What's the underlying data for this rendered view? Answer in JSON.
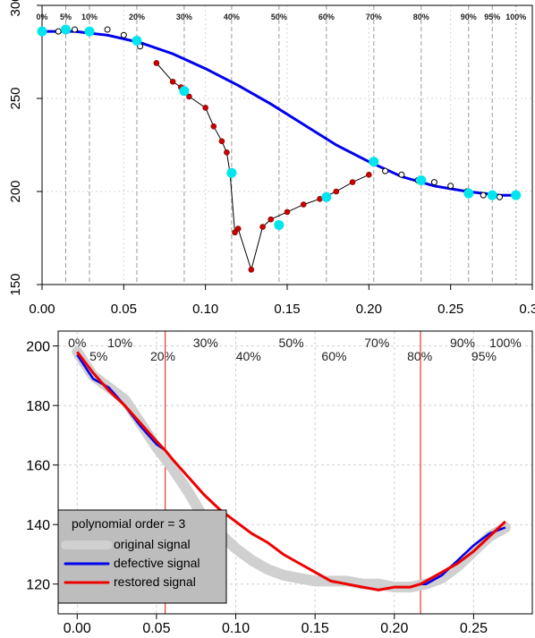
{
  "chart_data": [
    {
      "type": "scatter",
      "title": "",
      "xlabel": "",
      "ylabel": "",
      "xlim": [
        0,
        0.3
      ],
      "ylim": [
        150,
        300
      ],
      "xticks": [
        0.0,
        0.05,
        0.1,
        0.15,
        0.2,
        0.25,
        0.3
      ],
      "yticks": [
        150,
        200,
        250,
        300
      ],
      "xtick_labels": [
        "0.00",
        "0.05",
        "0.10",
        "0.15",
        "0.20",
        "0.25",
        "0.30"
      ],
      "ytick_labels": [
        "150",
        "200",
        "250",
        "300"
      ],
      "grid": "dotted",
      "percent_lines": [
        {
          "label": "0%",
          "x": 0.0,
          "style": "dotted"
        },
        {
          "label": "5%",
          "x": 0.0145,
          "style": "dashed"
        },
        {
          "label": "10%",
          "x": 0.029,
          "style": "dashed"
        },
        {
          "label": "20%",
          "x": 0.058,
          "style": "dashed"
        },
        {
          "label": "30%",
          "x": 0.087,
          "style": "dashed"
        },
        {
          "label": "40%",
          "x": 0.116,
          "style": "dashed"
        },
        {
          "label": "50%",
          "x": 0.145,
          "style": "dashed"
        },
        {
          "label": "60%",
          "x": 0.174,
          "style": "dashed"
        },
        {
          "label": "70%",
          "x": 0.203,
          "style": "dashed"
        },
        {
          "label": "80%",
          "x": 0.232,
          "style": "dashed"
        },
        {
          "label": "90%",
          "x": 0.261,
          "style": "dashed"
        },
        {
          "label": "95%",
          "x": 0.2755,
          "style": "dashed"
        },
        {
          "label": "100%",
          "x": 0.29,
          "style": "dotted"
        }
      ],
      "series": [
        {
          "role": "fitted-curve",
          "color": "#0000ee",
          "x": [
            0.0,
            0.02,
            0.04,
            0.06,
            0.08,
            0.1,
            0.12,
            0.14,
            0.16,
            0.18,
            0.2,
            0.22,
            0.24,
            0.26,
            0.28,
            0.29
          ],
          "y": [
            286,
            286,
            284,
            280,
            274,
            266,
            257,
            247,
            236,
            225,
            216,
            208,
            203,
            200,
            198,
            198
          ]
        },
        {
          "role": "original-points",
          "color": "#000000",
          "x": [
            0.0,
            0.01,
            0.02,
            0.03,
            0.04,
            0.05,
            0.06,
            0.21,
            0.22,
            0.23,
            0.24,
            0.25,
            0.26,
            0.27,
            0.28,
            0.29
          ],
          "y": [
            286,
            286,
            287,
            286,
            287,
            284,
            278,
            211,
            209,
            206,
            205,
            203,
            200,
            198,
            197,
            198
          ]
        },
        {
          "role": "defective-points",
          "color": "#cc0000",
          "x": [
            0.07,
            0.08,
            0.085,
            0.09,
            0.1,
            0.105,
            0.11,
            0.113,
            0.115,
            0.118,
            0.12,
            0.128,
            0.135,
            0.14,
            0.15,
            0.16,
            0.17,
            0.18,
            0.19,
            0.2
          ],
          "y": [
            269,
            259,
            256,
            251,
            245,
            235,
            227,
            221,
            210,
            178,
            180,
            158,
            181,
            185,
            189,
            193,
            196,
            200,
            205,
            209
          ]
        },
        {
          "role": "sampled-points",
          "color": "#00e5ee",
          "x": [
            0.0,
            0.0145,
            0.029,
            0.058,
            0.087,
            0.116,
            0.145,
            0.174,
            0.203,
            0.232,
            0.261,
            0.2755,
            0.29
          ],
          "y": [
            286,
            287,
            286,
            281,
            254,
            210,
            182,
            197,
            216,
            206,
            199,
            198,
            198
          ]
        }
      ]
    },
    {
      "type": "line",
      "title": "",
      "xlabel": "",
      "ylabel": "",
      "xlim": [
        -0.012,
        0.287
      ],
      "ylim": [
        110,
        205
      ],
      "xticks": [
        0.0,
        0.05,
        0.1,
        0.15,
        0.2,
        0.25
      ],
      "yticks": [
        120,
        140,
        160,
        180,
        200
      ],
      "xtick_labels": [
        "0.00",
        "0.05",
        "0.10",
        "0.15",
        "0.20",
        "0.25"
      ],
      "ytick_labels": [
        "120",
        "140",
        "160",
        "180",
        "200"
      ],
      "grid": "dotted",
      "percent_labels": [
        {
          "label": "0%",
          "x": 0.0,
          "row": "top"
        },
        {
          "label": "5%",
          "x": 0.0135,
          "row": "bottom"
        },
        {
          "label": "10%",
          "x": 0.027,
          "row": "top"
        },
        {
          "label": "20%",
          "x": 0.054,
          "row": "bottom"
        },
        {
          "label": "30%",
          "x": 0.081,
          "row": "top"
        },
        {
          "label": "40%",
          "x": 0.108,
          "row": "bottom"
        },
        {
          "label": "50%",
          "x": 0.135,
          "row": "top"
        },
        {
          "label": "60%",
          "x": 0.162,
          "row": "bottom"
        },
        {
          "label": "70%",
          "x": 0.189,
          "row": "top"
        },
        {
          "label": "80%",
          "x": 0.216,
          "row": "bottom"
        },
        {
          "label": "90%",
          "x": 0.243,
          "row": "top"
        },
        {
          "label": "95%",
          "x": 0.2565,
          "row": "bottom"
        },
        {
          "label": "100%",
          "x": 0.27,
          "row": "top"
        }
      ],
      "red_vlines": [
        0.0555,
        0.2165
      ],
      "series": [
        {
          "name": "original signal",
          "color": "#d0d0d0",
          "x": [
            0.0,
            0.01,
            0.02,
            0.03,
            0.04,
            0.05,
            0.06,
            0.07,
            0.08,
            0.09,
            0.1,
            0.11,
            0.12,
            0.13,
            0.14,
            0.15,
            0.16,
            0.17,
            0.18,
            0.19,
            0.2,
            0.21,
            0.22,
            0.23,
            0.24,
            0.25,
            0.26,
            0.27
          ],
          "y": [
            198,
            190,
            186,
            182,
            174,
            166,
            159,
            151,
            142,
            137,
            132,
            128,
            125,
            123,
            122,
            121,
            121,
            121,
            120,
            120,
            119,
            119,
            120,
            122,
            126,
            131,
            136,
            139
          ]
        },
        {
          "name": "defective signal",
          "color": "#0000ee",
          "x": [
            0.0,
            0.01,
            0.02,
            0.03,
            0.04,
            0.05,
            0.0555,
            0.2165,
            0.22,
            0.23,
            0.24,
            0.25,
            0.26,
            0.27
          ],
          "y": [
            197,
            189,
            186,
            180,
            173,
            167,
            165,
            120,
            120,
            123,
            128,
            133,
            137,
            139
          ]
        },
        {
          "name": "restored signal",
          "color": "#ee0000",
          "x": [
            0.0,
            0.01,
            0.02,
            0.03,
            0.04,
            0.05,
            0.0555,
            0.06,
            0.07,
            0.08,
            0.09,
            0.1,
            0.11,
            0.12,
            0.13,
            0.14,
            0.15,
            0.16,
            0.17,
            0.18,
            0.19,
            0.2,
            0.21,
            0.2165,
            0.22,
            0.23,
            0.24,
            0.25,
            0.26,
            0.27
          ],
          "y": [
            198,
            191,
            185,
            180,
            174,
            168,
            165,
            162,
            156,
            150,
            145,
            141,
            137,
            134,
            130,
            127,
            124,
            121,
            120,
            119,
            118,
            119,
            119,
            120,
            121,
            124,
            127,
            131,
            136,
            141
          ]
        }
      ],
      "legend": {
        "title": "polynomial order = 3",
        "position": "bottom-left",
        "entries": [
          "original signal",
          "defective signal",
          "restored signal"
        ]
      }
    }
  ]
}
